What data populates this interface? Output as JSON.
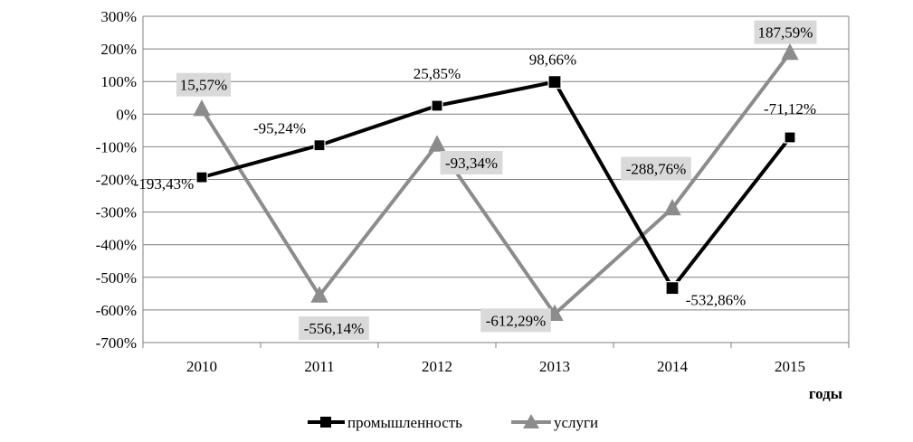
{
  "chart_data": {
    "type": "line",
    "categories": [
      "2010",
      "2011",
      "2012",
      "2013",
      "2014",
      "2015"
    ],
    "series": [
      {
        "name": "промышленность",
        "values": [
          -193.43,
          -95.24,
          25.85,
          98.66,
          -532.86,
          -71.12
        ],
        "labels": [
          "-193,43%",
          "-95,24%",
          "25,85%",
          "98,66%",
          "-532,86%",
          "-71,12%"
        ],
        "color": "#000000",
        "marker": "square"
      },
      {
        "name": "услуги",
        "values": [
          15.57,
          -556.14,
          -93.34,
          -612.29,
          -288.76,
          187.59
        ],
        "labels": [
          "15,57%",
          "-556,14%",
          "-93,34%",
          "-612,29%",
          "-288,76%",
          "187,59%"
        ],
        "color": "#8c8c8c",
        "marker": "triangle"
      }
    ],
    "ylim": [
      -700,
      300
    ],
    "yticks": [
      300,
      200,
      100,
      0,
      -100,
      -200,
      -300,
      -400,
      -500,
      -600,
      -700
    ],
    "ytick_labels": [
      "300%",
      "200%",
      "100%",
      "0%",
      "-100%",
      "-200%",
      "-300%",
      "-400%",
      "-500%",
      "-600%",
      "-700%"
    ],
    "xlabel": "годы",
    "ylabel": "",
    "title": "",
    "grid": true,
    "legend_position": "bottom"
  }
}
